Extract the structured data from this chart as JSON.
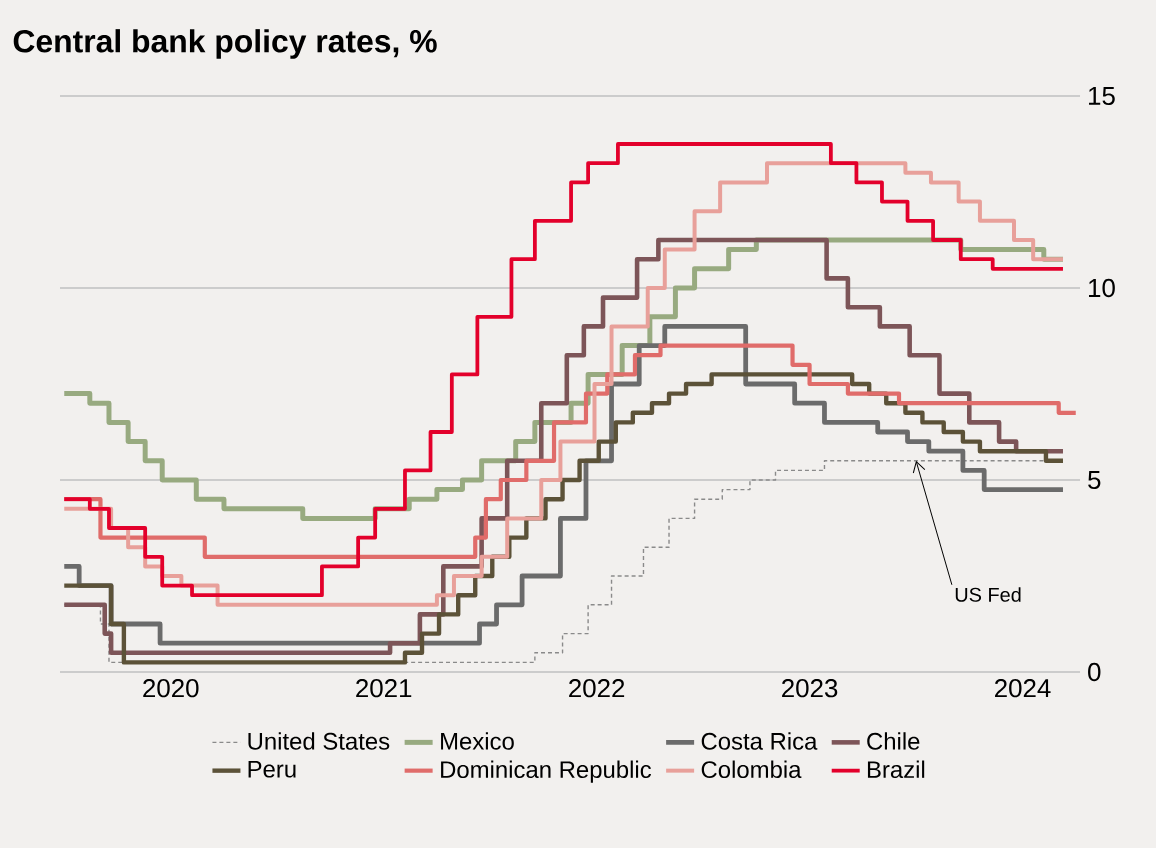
{
  "chart_data": {
    "type": "step",
    "title": "Central bank policy rates, %",
    "xlim": [
      2019.98,
      2024.77
    ],
    "ylim": [
      0,
      15
    ],
    "xticks": [
      {
        "value": 2020.5,
        "label": "2020"
      },
      {
        "value": 2021.5,
        "label": "2021"
      },
      {
        "value": 2022.5,
        "label": "2022"
      },
      {
        "value": 2023.5,
        "label": "2023"
      },
      {
        "value": 2024.5,
        "label": "2024"
      }
    ],
    "yticks": [
      0,
      5,
      10,
      15
    ],
    "grid": "y",
    "legend": "bottom",
    "annotations": [
      {
        "text": "US Fed",
        "x": 2024.0,
        "y": 5.5
      }
    ],
    "series": [
      {
        "name": "United States",
        "color": "#8a8a8a",
        "line_style": "dashed",
        "x": [
          2020,
          2020.17,
          2020.21,
          2022.21,
          2022.34,
          2022.46,
          2022.57,
          2022.72,
          2022.84,
          2022.96,
          2023.09,
          2023.22,
          2023.34,
          2023.57,
          2024.69
        ],
        "values": [
          1.75,
          1.25,
          0.25,
          0.5,
          1.0,
          1.75,
          2.5,
          3.25,
          4.0,
          4.5,
          4.75,
          5.0,
          5.25,
          5.5,
          5.5
        ]
      },
      {
        "name": "Mexico",
        "color": "#98aa80",
        "x": [
          2020,
          2020.12,
          2020.21,
          2020.3,
          2020.38,
          2020.46,
          2020.62,
          2020.75,
          2021.12,
          2021.46,
          2021.62,
          2021.75,
          2021.87,
          2021.96,
          2022.12,
          2022.21,
          2022.38,
          2022.46,
          2022.62,
          2022.75,
          2022.87,
          2022.96,
          2023.12,
          2023.25,
          2024.21,
          2024.6,
          2024.69
        ],
        "values": [
          7.25,
          7.0,
          6.5,
          6.0,
          5.5,
          5.0,
          4.5,
          4.25,
          4.0,
          4.25,
          4.5,
          4.75,
          5.0,
          5.5,
          6.0,
          6.5,
          7.0,
          7.75,
          8.5,
          9.25,
          10.0,
          10.5,
          11.0,
          11.25,
          11.0,
          10.75,
          10.75
        ]
      },
      {
        "name": "Costa Rica",
        "color": "#6b6b6b",
        "x": [
          2020,
          2020.07,
          2020.22,
          2020.45,
          2021.95,
          2022.03,
          2022.15,
          2022.33,
          2022.45,
          2022.57,
          2022.7,
          2022.82,
          2023.2,
          2023.43,
          2023.57,
          2023.82,
          2023.96,
          2024.06,
          2024.22,
          2024.32,
          2024.69
        ],
        "values": [
          2.75,
          2.25,
          1.25,
          0.75,
          1.25,
          1.75,
          2.5,
          4.0,
          5.5,
          7.5,
          8.5,
          9.0,
          7.5,
          7.0,
          6.5,
          6.25,
          6.0,
          5.75,
          5.25,
          4.75,
          4.75
        ]
      },
      {
        "name": "Chile",
        "color": "#7d5558",
        "x": [
          2020,
          2020.19,
          2020.22,
          2021.53,
          2021.67,
          2021.78,
          2021.96,
          2022.08,
          2022.24,
          2022.36,
          2022.44,
          2022.53,
          2022.69,
          2022.79,
          2023.58,
          2023.68,
          2023.83,
          2023.97,
          2024.11,
          2024.25,
          2024.39,
          2024.47,
          2024.69
        ],
        "values": [
          1.75,
          1.0,
          0.5,
          0.75,
          1.5,
          2.75,
          4.0,
          5.5,
          7.0,
          8.25,
          9.0,
          9.75,
          10.75,
          11.25,
          10.25,
          9.5,
          9.0,
          8.25,
          7.25,
          6.5,
          6.0,
          5.75,
          5.75
        ]
      },
      {
        "name": "Peru",
        "color": "#5c5238",
        "x": [
          2020,
          2020.22,
          2020.28,
          2021.6,
          2021.68,
          2021.76,
          2021.85,
          2021.93,
          2022.01,
          2022.09,
          2022.17,
          2022.26,
          2022.34,
          2022.42,
          2022.51,
          2022.59,
          2022.67,
          2022.76,
          2022.84,
          2022.92,
          2023.04,
          2023.7,
          2023.78,
          2023.86,
          2023.95,
          2024.03,
          2024.13,
          2024.22,
          2024.3,
          2024.61,
          2024.69
        ],
        "values": [
          2.25,
          1.25,
          0.25,
          0.5,
          1.0,
          1.5,
          2.0,
          2.5,
          3.0,
          3.5,
          4.0,
          4.5,
          5.0,
          5.5,
          6.0,
          6.5,
          6.75,
          7.0,
          7.25,
          7.5,
          7.75,
          7.5,
          7.25,
          7.0,
          6.75,
          6.5,
          6.25,
          6.0,
          5.75,
          5.5,
          5.5
        ]
      },
      {
        "name": "Dominican Republic",
        "color": "#e06c6a",
        "x": [
          2020,
          2020.17,
          2020.66,
          2021.93,
          2021.98,
          2022.05,
          2022.17,
          2022.3,
          2022.45,
          2022.55,
          2022.68,
          2022.8,
          2023.42,
          2023.5,
          2023.68,
          2023.92,
          2024.67,
          2024.75
        ],
        "values": [
          4.5,
          3.5,
          3.0,
          3.5,
          4.5,
          5.0,
          5.5,
          6.5,
          7.25,
          7.75,
          8.25,
          8.5,
          8.0,
          7.5,
          7.25,
          7.0,
          6.75,
          6.75
        ]
      },
      {
        "name": "Colombia",
        "color": "#e8a09a",
        "x": [
          2020,
          2020.22,
          2020.3,
          2020.38,
          2020.46,
          2020.55,
          2020.72,
          2021.75,
          2021.83,
          2021.96,
          2022.08,
          2022.24,
          2022.33,
          2022.49,
          2022.57,
          2022.74,
          2022.82,
          2022.96,
          2023.08,
          2023.3,
          2023.95,
          2024.07,
          2024.2,
          2024.3,
          2024.46,
          2024.55,
          2024.69
        ],
        "values": [
          4.25,
          3.75,
          3.25,
          2.75,
          2.5,
          2.25,
          1.75,
          2.0,
          2.5,
          3.0,
          4.0,
          5.0,
          6.0,
          7.5,
          9.0,
          10.0,
          11.0,
          12.0,
          12.75,
          13.25,
          13.0,
          12.75,
          12.25,
          11.75,
          11.25,
          10.75,
          10.75
        ]
      },
      {
        "name": "Brazil",
        "color": "#e3002b",
        "x": [
          2020,
          2020.12,
          2020.21,
          2020.38,
          2020.46,
          2020.6,
          2021.21,
          2021.38,
          2021.46,
          2021.6,
          2021.72,
          2021.82,
          2021.94,
          2022.1,
          2022.21,
          2022.38,
          2022.46,
          2022.6,
          2023.6,
          2023.72,
          2023.84,
          2023.96,
          2024.08,
          2024.21,
          2024.36,
          2024.69
        ],
        "values": [
          4.5,
          4.25,
          3.75,
          3.0,
          2.25,
          2.0,
          2.75,
          3.5,
          4.25,
          5.25,
          6.25,
          7.75,
          9.25,
          10.75,
          11.75,
          12.75,
          13.25,
          13.75,
          13.25,
          12.75,
          12.25,
          11.75,
          11.25,
          10.75,
          10.5,
          10.5
        ]
      }
    ]
  }
}
